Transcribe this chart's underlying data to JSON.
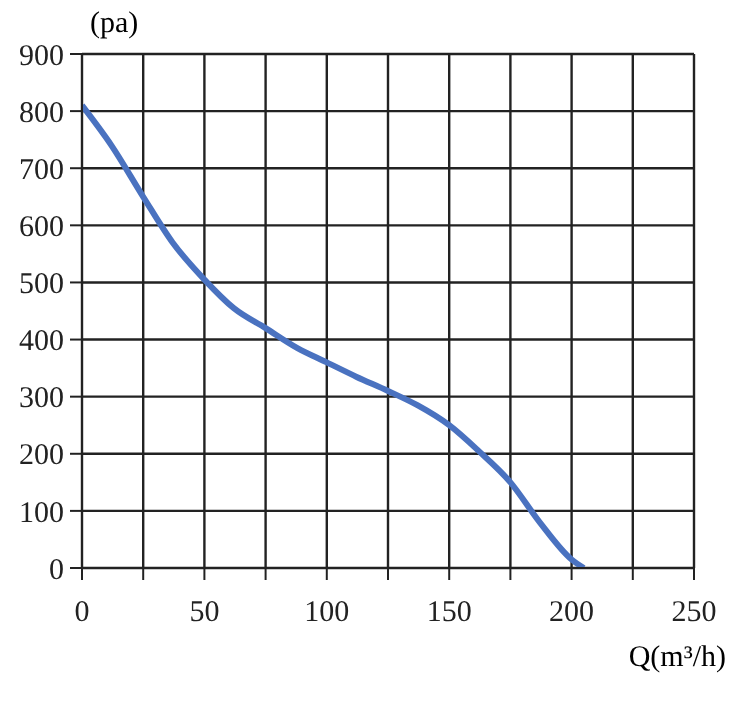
{
  "chart_data": {
    "type": "line",
    "xlabel": "Q(m³/h)",
    "ylabel": "(pa)",
    "series": [
      {
        "color": "#4a72c0",
        "x": [
          0,
          12,
          25,
          37,
          50,
          62,
          75,
          88,
          100,
          112,
          125,
          137,
          150,
          162,
          175,
          187,
          200,
          205
        ],
        "values": [
          810,
          740,
          650,
          570,
          505,
          455,
          420,
          385,
          360,
          335,
          310,
          285,
          250,
          205,
          150,
          80,
          15,
          0
        ]
      }
    ],
    "xlim": [
      0,
      250
    ],
    "xticks": [
      0,
      {
        "value": 25,
        "label": null
      },
      50,
      {
        "value": 75,
        "label": null
      },
      100,
      {
        "value": 125,
        "label": null
      },
      150,
      {
        "value": 175,
        "label": null
      },
      200,
      {
        "value": 225,
        "label": null
      },
      250
    ],
    "ylim": [
      0,
      900
    ],
    "yticks": [
      0,
      100,
      200,
      300,
      400,
      500,
      600,
      700,
      800,
      900
    ],
    "grid": true,
    "legend": false,
    "marker": "none",
    "line_style": "solid"
  }
}
